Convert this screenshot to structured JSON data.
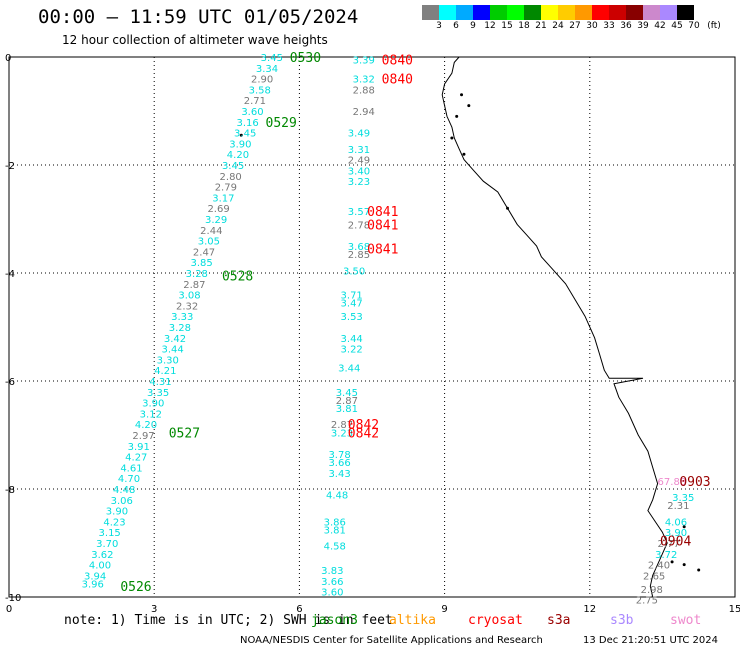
{
  "header": {
    "title": "00:00 – 11:59 UTC 01/05/2024",
    "subtitle": "12 hour collection of altimeter wave heights"
  },
  "colorbar": {
    "labels": [
      "3",
      "6",
      "9",
      "12",
      "15",
      "18",
      "21",
      "24",
      "27",
      "30",
      "33",
      "36",
      "39",
      "42",
      "45",
      "70"
    ],
    "unit": "(ft)",
    "colors": [
      "#808080",
      "#00ffff",
      "#00aaff",
      "#0000ff",
      "#00cc00",
      "#00ff00",
      "#008800",
      "#ffff00",
      "#ffcc00",
      "#ff9900",
      "#ff0000",
      "#cc0000",
      "#880000",
      "#cc88cc",
      "#aa88ff",
      "#000000"
    ]
  },
  "axes": {
    "x_ticks": [
      "0",
      "3",
      "6",
      "9",
      "12",
      "15"
    ],
    "y_ticks": [
      "0",
      "-2",
      "-4",
      "-6",
      "-8",
      "-10"
    ],
    "xlim": [
      0,
      15
    ],
    "ylim": [
      -10,
      0
    ],
    "grid": true
  },
  "satellites": {
    "jason3": {
      "name": "jason3",
      "color": "#008800"
    },
    "altika": {
      "name": "altika",
      "color": "#ff9900"
    },
    "cryosat": {
      "name": "cryosat",
      "color": "#ff0000"
    },
    "s3a": {
      "name": "s3a",
      "color": "#990000"
    },
    "s3b": {
      "name": "s3b",
      "color": "#aa88ff"
    },
    "swot": {
      "name": "swot",
      "color": "#ee88cc"
    }
  },
  "time_labels": [
    {
      "text": "0530",
      "sat": "jason3",
      "x": 5.8,
      "y": 0.0
    },
    {
      "text": "0529",
      "sat": "jason3",
      "x": 5.3,
      "y": -1.2
    },
    {
      "text": "0528",
      "sat": "jason3",
      "x": 4.4,
      "y": -4.05
    },
    {
      "text": "0527",
      "sat": "jason3",
      "x": 3.3,
      "y": -6.95
    },
    {
      "text": "0526",
      "sat": "jason3",
      "x": 2.3,
      "y": -9.8
    },
    {
      "text": "0840",
      "sat": "cryosat",
      "x": 7.7,
      "y": -0.05
    },
    {
      "text": "0840",
      "sat": "cryosat",
      "x": 7.7,
      "y": -0.4
    },
    {
      "text": "0841",
      "sat": "cryosat",
      "x": 7.4,
      "y": -2.85
    },
    {
      "text": "0841",
      "sat": "cryosat",
      "x": 7.4,
      "y": -3.1
    },
    {
      "text": "0841",
      "sat": "cryosat",
      "x": 7.4,
      "y": -3.55
    },
    {
      "text": "0842",
      "sat": "cryosat",
      "x": 7.0,
      "y": -6.8
    },
    {
      "text": "0842",
      "sat": "cryosat",
      "x": 7.0,
      "y": -6.95
    },
    {
      "text": "0903",
      "sat": "s3a",
      "x": 13.85,
      "y": -7.85
    },
    {
      "text": "0904",
      "sat": "s3a",
      "x": 13.45,
      "y": -8.95
    }
  ],
  "wave_heights": [
    {
      "text": "3.45",
      "x": 5.2,
      "y": 0.0,
      "color": "#00dddd"
    },
    {
      "text": "3.34",
      "x": 5.1,
      "y": -0.2,
      "color": "#00dddd"
    },
    {
      "text": "2.90",
      "x": 5.0,
      "y": -0.4,
      "color": "#777777"
    },
    {
      "text": "3.58",
      "x": 4.95,
      "y": -0.6,
      "color": "#00dddd"
    },
    {
      "text": "2.71",
      "x": 4.85,
      "y": -0.8,
      "color": "#777777"
    },
    {
      "text": "3.60",
      "x": 4.8,
      "y": -1.0,
      "color": "#00dddd"
    },
    {
      "text": "3.16",
      "x": 4.7,
      "y": -1.2,
      "color": "#00dddd"
    },
    {
      "text": "3.45",
      "x": 4.65,
      "y": -1.4,
      "color": "#00dddd"
    },
    {
      "text": "3.90",
      "x": 4.55,
      "y": -1.6,
      "color": "#00dddd"
    },
    {
      "text": "4.20",
      "x": 4.5,
      "y": -1.8,
      "color": "#00dddd"
    },
    {
      "text": "3.45",
      "x": 4.4,
      "y": -2.0,
      "color": "#00dddd"
    },
    {
      "text": "2.80",
      "x": 4.35,
      "y": -2.2,
      "color": "#777777"
    },
    {
      "text": "2.79",
      "x": 4.25,
      "y": -2.4,
      "color": "#777777"
    },
    {
      "text": "3.17",
      "x": 4.2,
      "y": -2.6,
      "color": "#00dddd"
    },
    {
      "text": "2.69",
      "x": 4.1,
      "y": -2.8,
      "color": "#777777"
    },
    {
      "text": "3.29",
      "x": 4.05,
      "y": -3.0,
      "color": "#00dddd"
    },
    {
      "text": "2.44",
      "x": 3.95,
      "y": -3.2,
      "color": "#777777"
    },
    {
      "text": "3.05",
      "x": 3.9,
      "y": -3.4,
      "color": "#00dddd"
    },
    {
      "text": "2.47",
      "x": 3.8,
      "y": -3.6,
      "color": "#777777"
    },
    {
      "text": "3.85",
      "x": 3.75,
      "y": -3.8,
      "color": "#00dddd"
    },
    {
      "text": "3.28",
      "x": 3.65,
      "y": -4.0,
      "color": "#00dddd"
    },
    {
      "text": "2.87",
      "x": 3.6,
      "y": -4.2,
      "color": "#777777"
    },
    {
      "text": "3.08",
      "x": 3.5,
      "y": -4.4,
      "color": "#00dddd"
    },
    {
      "text": "2.32",
      "x": 3.45,
      "y": -4.6,
      "color": "#777777"
    },
    {
      "text": "3.33",
      "x": 3.35,
      "y": -4.8,
      "color": "#00dddd"
    },
    {
      "text": "3.28",
      "x": 3.3,
      "y": -5.0,
      "color": "#00dddd"
    },
    {
      "text": "3.42",
      "x": 3.2,
      "y": -5.2,
      "color": "#00dddd"
    },
    {
      "text": "3.44",
      "x": 3.15,
      "y": -5.4,
      "color": "#00dddd"
    },
    {
      "text": "3.30",
      "x": 3.05,
      "y": -5.6,
      "color": "#00dddd"
    },
    {
      "text": "4.21",
      "x": 3.0,
      "y": -5.8,
      "color": "#00dddd"
    },
    {
      "text": "4.31",
      "x": 2.9,
      "y": -6.0,
      "color": "#00dddd"
    },
    {
      "text": "3.35",
      "x": 2.85,
      "y": -6.2,
      "color": "#00dddd"
    },
    {
      "text": "3.90",
      "x": 2.75,
      "y": -6.4,
      "color": "#00dddd"
    },
    {
      "text": "3.12",
      "x": 2.7,
      "y": -6.6,
      "color": "#00dddd"
    },
    {
      "text": "4.20",
      "x": 2.6,
      "y": -6.8,
      "color": "#00dddd"
    },
    {
      "text": "2.97",
      "x": 2.55,
      "y": -7.0,
      "color": "#777777"
    },
    {
      "text": "3.91",
      "x": 2.45,
      "y": -7.2,
      "color": "#00dddd"
    },
    {
      "text": "4.27",
      "x": 2.4,
      "y": -7.4,
      "color": "#00dddd"
    },
    {
      "text": "4.61",
      "x": 2.3,
      "y": -7.6,
      "color": "#00dddd"
    },
    {
      "text": "4.70",
      "x": 2.25,
      "y": -7.8,
      "color": "#00dddd"
    },
    {
      "text": "4.48",
      "x": 2.15,
      "y": -8.0,
      "color": "#00dddd"
    },
    {
      "text": "3.06",
      "x": 2.1,
      "y": -8.2,
      "color": "#00dddd"
    },
    {
      "text": "3.90",
      "x": 2.0,
      "y": -8.4,
      "color": "#00dddd"
    },
    {
      "text": "4.23",
      "x": 1.95,
      "y": -8.6,
      "color": "#00dddd"
    },
    {
      "text": "3.15",
      "x": 1.85,
      "y": -8.8,
      "color": "#00dddd"
    },
    {
      "text": "3.70",
      "x": 1.8,
      "y": -9.0,
      "color": "#00dddd"
    },
    {
      "text": "3.62",
      "x": 1.7,
      "y": -9.2,
      "color": "#00dddd"
    },
    {
      "text": "4.00",
      "x": 1.65,
      "y": -9.4,
      "color": "#00dddd"
    },
    {
      "text": "3.94",
      "x": 1.55,
      "y": -9.6,
      "color": "#00dddd"
    },
    {
      "text": "3.96",
      "x": 1.5,
      "y": -9.75,
      "color": "#00dddd"
    },
    {
      "text": "3.39",
      "x": 7.1,
      "y": -0.05,
      "color": "#00dddd"
    },
    {
      "text": "3.32",
      "x": 7.1,
      "y": -0.4,
      "color": "#00dddd"
    },
    {
      "text": "2.88",
      "x": 7.1,
      "y": -0.6,
      "color": "#777777"
    },
    {
      "text": "2.94",
      "x": 7.1,
      "y": -1.0,
      "color": "#777777"
    },
    {
      "text": "3.49",
      "x": 7.0,
      "y": -1.4,
      "color": "#00dddd"
    },
    {
      "text": "3.31",
      "x": 7.0,
      "y": -1.7,
      "color": "#00dddd"
    },
    {
      "text": "2.49",
      "x": 7.0,
      "y": -1.9,
      "color": "#777777"
    },
    {
      "text": "3.40",
      "x": 7.0,
      "y": -2.1,
      "color": "#00dddd"
    },
    {
      "text": "3.23",
      "x": 7.0,
      "y": -2.3,
      "color": "#00dddd"
    },
    {
      "text": "3.57",
      "x": 7.0,
      "y": -2.85,
      "color": "#00dddd"
    },
    {
      "text": "2.78",
      "x": 7.0,
      "y": -3.1,
      "color": "#777777"
    },
    {
      "text": "3.68",
      "x": 7.0,
      "y": -3.5,
      "color": "#00dddd"
    },
    {
      "text": "2.85",
      "x": 7.0,
      "y": -3.65,
      "color": "#777777"
    },
    {
      "text": "3.50",
      "x": 6.9,
      "y": -3.95,
      "color": "#00dddd"
    },
    {
      "text": "3.71",
      "x": 6.85,
      "y": -4.4,
      "color": "#00dddd"
    },
    {
      "text": "3.47",
      "x": 6.85,
      "y": -4.55,
      "color": "#00dddd"
    },
    {
      "text": "3.53",
      "x": 6.85,
      "y": -4.8,
      "color": "#00dddd"
    },
    {
      "text": "3.44",
      "x": 6.85,
      "y": -5.2,
      "color": "#00dddd"
    },
    {
      "text": "3.22",
      "x": 6.85,
      "y": -5.4,
      "color": "#00dddd"
    },
    {
      "text": "3.44",
      "x": 6.8,
      "y": -5.75,
      "color": "#00dddd"
    },
    {
      "text": "3.45",
      "x": 6.75,
      "y": -6.2,
      "color": "#00dddd"
    },
    {
      "text": "2.87",
      "x": 6.75,
      "y": -6.35,
      "color": "#777777"
    },
    {
      "text": "3.81",
      "x": 6.75,
      "y": -6.5,
      "color": "#00dddd"
    },
    {
      "text": "2.87",
      "x": 6.65,
      "y": -6.8,
      "color": "#777777"
    },
    {
      "text": "3.23",
      "x": 6.65,
      "y": -6.95,
      "color": "#00dddd"
    },
    {
      "text": "3.78",
      "x": 6.6,
      "y": -7.35,
      "color": "#00dddd"
    },
    {
      "text": "3.66",
      "x": 6.6,
      "y": -7.5,
      "color": "#00dddd"
    },
    {
      "text": "3.43",
      "x": 6.6,
      "y": -7.7,
      "color": "#00dddd"
    },
    {
      "text": "4.48",
      "x": 6.55,
      "y": -8.1,
      "color": "#00dddd"
    },
    {
      "text": "3.86",
      "x": 6.5,
      "y": -8.6,
      "color": "#00dddd"
    },
    {
      "text": "3.81",
      "x": 6.5,
      "y": -8.75,
      "color": "#00dddd"
    },
    {
      "text": "4.58",
      "x": 6.5,
      "y": -9.05,
      "color": "#00dddd"
    },
    {
      "text": "3.83",
      "x": 6.45,
      "y": -9.5,
      "color": "#00dddd"
    },
    {
      "text": "3.66",
      "x": 6.45,
      "y": -9.7,
      "color": "#00dddd"
    },
    {
      "text": "3.60",
      "x": 6.45,
      "y": -9.9,
      "color": "#00dddd"
    },
    {
      "text": "67.88",
      "x": 13.4,
      "y": -7.85,
      "color": "#ee88cc"
    },
    {
      "text": "3.35",
      "x": 13.7,
      "y": -8.15,
      "color": "#00dddd"
    },
    {
      "text": "2.31",
      "x": 13.6,
      "y": -8.3,
      "color": "#777777"
    },
    {
      "text": "4.06",
      "x": 13.55,
      "y": -8.6,
      "color": "#00dddd"
    },
    {
      "text": "3.90",
      "x": 13.55,
      "y": -8.8,
      "color": "#00dddd"
    },
    {
      "text": "2.77",
      "x": 13.4,
      "y": -9.0,
      "color": "#777777"
    },
    {
      "text": "3.72",
      "x": 13.35,
      "y": -9.2,
      "color": "#00dddd"
    },
    {
      "text": "2.40",
      "x": 13.2,
      "y": -9.4,
      "color": "#777777"
    },
    {
      "text": "2.65",
      "x": 13.1,
      "y": -9.6,
      "color": "#777777"
    },
    {
      "text": "2.98",
      "x": 13.05,
      "y": -9.85,
      "color": "#777777"
    },
    {
      "text": "2.75",
      "x": 12.95,
      "y": -10.05,
      "color": "#777777"
    }
  ],
  "coastline": [
    [
      9.3,
      0.0
    ],
    [
      9.2,
      -0.1
    ],
    [
      9.15,
      -0.3
    ],
    [
      9.0,
      -0.5
    ],
    [
      8.95,
      -0.7
    ],
    [
      9.0,
      -0.9
    ],
    [
      9.05,
      -1.1
    ],
    [
      9.15,
      -1.3
    ],
    [
      9.2,
      -1.5
    ],
    [
      9.3,
      -1.7
    ],
    [
      9.4,
      -1.9
    ],
    [
      9.6,
      -2.1
    ],
    [
      9.8,
      -2.3
    ],
    [
      10.1,
      -2.5
    ],
    [
      10.3,
      -2.8
    ],
    [
      10.5,
      -3.1
    ],
    [
      10.7,
      -3.3
    ],
    [
      10.9,
      -3.5
    ],
    [
      11.0,
      -3.7
    ],
    [
      11.2,
      -3.9
    ],
    [
      11.5,
      -4.2
    ],
    [
      11.7,
      -4.5
    ],
    [
      11.9,
      -4.8
    ],
    [
      12.1,
      -5.2
    ],
    [
      12.2,
      -5.5
    ],
    [
      12.3,
      -5.8
    ],
    [
      12.4,
      -5.95
    ],
    [
      12.6,
      -5.95
    ],
    [
      13.0,
      -5.95
    ],
    [
      13.1,
      -5.95
    ],
    [
      12.8,
      -6.0
    ],
    [
      12.5,
      -6.05
    ],
    [
      12.6,
      -6.3
    ],
    [
      12.8,
      -6.6
    ],
    [
      13.0,
      -7.0
    ],
    [
      13.2,
      -7.3
    ],
    [
      13.3,
      -7.6
    ],
    [
      13.4,
      -7.9
    ],
    [
      13.3,
      -8.2
    ],
    [
      13.2,
      -8.4
    ],
    [
      13.35,
      -8.6
    ],
    [
      13.5,
      -8.8
    ],
    [
      13.6,
      -9.0
    ],
    [
      13.5,
      -9.2
    ],
    [
      13.4,
      -9.4
    ],
    [
      13.3,
      -9.6
    ],
    [
      13.25,
      -9.8
    ],
    [
      13.3,
      -10.0
    ]
  ],
  "note": {
    "text": "note: 1) Time is in UTC; 2) SWH is in feet"
  },
  "footer": {
    "credit": "NOAA/NESDIS Center for Satellite Applications and Research",
    "timestamp": "13 Dec 21:20:51 UTC 2024"
  }
}
